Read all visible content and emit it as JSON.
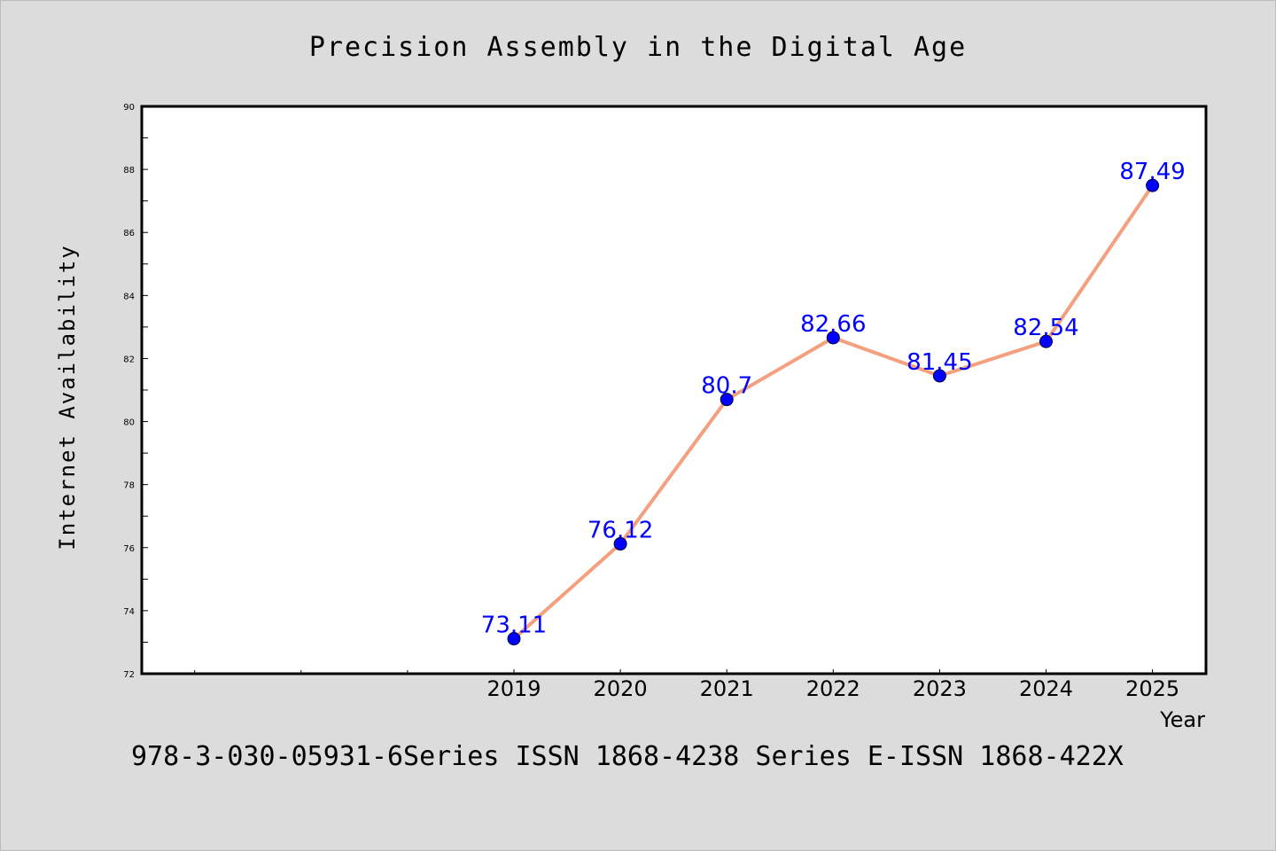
{
  "chart_data": {
    "type": "line",
    "title": "Precision Assembly in the Digital Age",
    "xlabel": "Year",
    "ylabel": "Internet Availability",
    "x": [
      "2019",
      "2020",
      "2021",
      "2022",
      "2023",
      "2024",
      "2025"
    ],
    "series": [
      {
        "values": [
          73.11,
          76.12,
          80.7,
          82.66,
          81.45,
          82.54,
          87.49
        ],
        "labels": [
          "73.11",
          "76.12",
          "80.7",
          "82.66",
          "81.45",
          "82.54",
          "87.49"
        ],
        "color": "#f4a07f",
        "marker_color": "#0000ff"
      }
    ],
    "ylim": [
      72,
      90
    ],
    "yticks": [
      "72",
      "74",
      "76",
      "78",
      "80",
      "82",
      "84",
      "86",
      "88",
      "90"
    ],
    "label_color": "#0000ff",
    "grid": false,
    "legend": "none",
    "background": "#dcdcdc",
    "plot_background": "#ffffff"
  },
  "footer": {
    "text": "978-3-030-05931-6Series ISSN 1868-4238 Series E-ISSN 1868-422X"
  }
}
